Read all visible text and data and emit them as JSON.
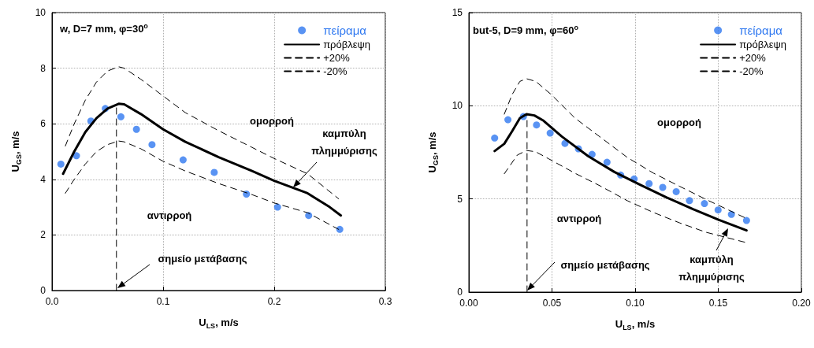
{
  "chart_data": [
    {
      "type": "scatter",
      "xlabel": "U$_{LS}$, m/s",
      "ylabel": "U$_{GS}$, m/s",
      "xlim": [
        0,
        0.3
      ],
      "ylim": [
        0,
        10
      ],
      "xticks": [
        {
          "value": 0,
          "label": "0.0"
        },
        {
          "value": 0.1,
          "label": "0.1"
        },
        {
          "value": 0.2,
          "label": "0.2"
        },
        {
          "value": 0.3,
          "label": "0.3"
        }
      ],
      "yticks": [
        0,
        2,
        4,
        6,
        8,
        10
      ],
      "grid": true,
      "legend": "top right",
      "annotations": [
        "w, D=7 mm, φ=30$^{o}$",
        "ομορροή",
        "αντιρροή",
        "καμπύλη πλημμύρισης",
        "σημείο μετάβασης"
      ],
      "series": [
        {
          "name": "πείραμα",
          "type": "scatter",
          "marker": "circle",
          "color": "#2f78f0",
          "x": [
            0.008,
            0.022,
            0.035,
            0.048,
            0.062,
            0.076,
            0.09,
            0.118,
            0.146,
            0.175,
            0.203,
            0.231,
            0.259
          ],
          "values": [
            4.55,
            4.85,
            6.1,
            6.55,
            6.25,
            5.8,
            5.25,
            4.7,
            4.25,
            3.47,
            3.0,
            2.7,
            2.2
          ]
        },
        {
          "name": "πρόβλεψη",
          "type": "line",
          "marker": "none",
          "line_style": "solid",
          "color": "#000000",
          "x": [
            0.01,
            0.02,
            0.03,
            0.04,
            0.05,
            0.06,
            0.065,
            0.08,
            0.1,
            0.12,
            0.15,
            0.18,
            0.2,
            0.23,
            0.25,
            0.26
          ],
          "values": [
            4.2,
            5.0,
            5.7,
            6.2,
            6.55,
            6.72,
            6.7,
            6.35,
            5.8,
            5.35,
            4.8,
            4.3,
            3.95,
            3.5,
            3.0,
            2.7
          ]
        },
        {
          "name": "+20%",
          "type": "line",
          "marker": "none",
          "line_style": "dashed",
          "color": "#000000",
          "x": [
            0.012,
            0.02,
            0.03,
            0.04,
            0.05,
            0.06,
            0.065,
            0.08,
            0.1,
            0.12,
            0.15,
            0.18,
            0.2,
            0.23,
            0.258
          ],
          "values": [
            5.2,
            6.0,
            6.85,
            7.5,
            7.9,
            8.05,
            8.0,
            7.6,
            7.0,
            6.4,
            5.75,
            5.15,
            4.75,
            4.2,
            3.3
          ]
        },
        {
          "name": "-20%",
          "type": "line",
          "marker": "none",
          "line_style": "dashed",
          "color": "#000000",
          "x": [
            0.012,
            0.02,
            0.03,
            0.04,
            0.05,
            0.06,
            0.065,
            0.08,
            0.1,
            0.12,
            0.15,
            0.18,
            0.2,
            0.23,
            0.258
          ],
          "values": [
            3.5,
            4.0,
            4.55,
            5.0,
            5.25,
            5.38,
            5.35,
            5.1,
            4.65,
            4.3,
            3.85,
            3.45,
            3.15,
            2.8,
            2.2
          ]
        },
        {
          "type": "line",
          "marker": "none",
          "line_style": "dashed",
          "color": "#000000",
          "x": [
            0.058,
            0.058
          ],
          "values": [
            0,
            6.6
          ]
        }
      ]
    },
    {
      "type": "scatter",
      "xlabel": "U$_{LS}$, m/s",
      "ylabel": "U$_{GS}$, m/s",
      "xlim": [
        0,
        0.2
      ],
      "ylim": [
        0,
        15
      ],
      "xticks": [
        {
          "value": 0,
          "label": "0.00"
        },
        {
          "value": 0.05,
          "label": "0.05"
        },
        {
          "value": 0.1,
          "label": "0.10"
        },
        {
          "value": 0.15,
          "label": "0.15"
        },
        {
          "value": 0.2,
          "label": "0.20"
        }
      ],
      "yticks": [
        0,
        5,
        10,
        15
      ],
      "grid": true,
      "legend": "top right",
      "annotations": [
        "but-5, D=9 mm, φ=60$^{o}$",
        "ομορροή",
        "αντιρροή",
        "καμπύλη πλημμύρισης",
        "σημείο μετάβασης"
      ],
      "series": [
        {
          "name": "πείραμα",
          "type": "scatter",
          "marker": "circle",
          "color": "#2f78f0",
          "x": [
            0.0155,
            0.0235,
            0.0328,
            0.0407,
            0.0489,
            0.0578,
            0.0659,
            0.0741,
            0.0831,
            0.0913,
            0.0994,
            0.1084,
            0.1166,
            0.1247,
            0.1327,
            0.1417,
            0.1499,
            0.1579,
            0.167
          ],
          "values": [
            8.27,
            9.25,
            9.42,
            8.97,
            8.53,
            7.98,
            7.69,
            7.39,
            6.97,
            6.28,
            6.07,
            5.82,
            5.62,
            5.39,
            4.91,
            4.75,
            4.41,
            4.17,
            3.84
          ]
        },
        {
          "name": "πρόβλεψη",
          "type": "line",
          "marker": "none",
          "line_style": "solid",
          "color": "#000000",
          "x": [
            0.0155,
            0.0213,
            0.026,
            0.0307,
            0.0347,
            0.0394,
            0.0449,
            0.0559,
            0.0717,
            0.0875,
            0.1032,
            0.119,
            0.1348,
            0.1505,
            0.167
          ],
          "values": [
            7.57,
            7.96,
            8.63,
            9.34,
            9.55,
            9.48,
            9.2,
            8.35,
            7.3,
            6.45,
            5.75,
            5.08,
            4.45,
            3.87,
            3.31
          ]
        },
        {
          "name": "+20%",
          "type": "line",
          "marker": "none",
          "line_style": "dashed",
          "color": "#000000",
          "x": [
            0.0213,
            0.026,
            0.0307,
            0.0347,
            0.0402,
            0.0496,
            0.0638,
            0.0796,
            0.0954,
            0.1111,
            0.1269,
            0.1427,
            0.1663
          ],
          "values": [
            9.55,
            10.6,
            11.31,
            11.45,
            11.31,
            10.6,
            9.34,
            8.28,
            7.22,
            6.38,
            5.67,
            4.97,
            3.98
          ]
        },
        {
          "name": "-20%",
          "type": "line",
          "marker": "none",
          "line_style": "dashed",
          "color": "#000000",
          "x": [
            0.0213,
            0.0292,
            0.0347,
            0.0402,
            0.0481,
            0.0638,
            0.0796,
            0.0954,
            0.1111,
            0.1269,
            0.1427,
            0.1663
          ],
          "values": [
            6.35,
            7.36,
            7.6,
            7.53,
            7.15,
            6.38,
            5.67,
            4.9,
            4.27,
            3.71,
            3.21,
            2.67
          ]
        },
        {
          "type": "line",
          "marker": "none",
          "line_style": "dashed",
          "color": "#000000",
          "x": [
            0.035,
            0.035
          ],
          "values": [
            0,
            9.5
          ]
        }
      ]
    }
  ]
}
